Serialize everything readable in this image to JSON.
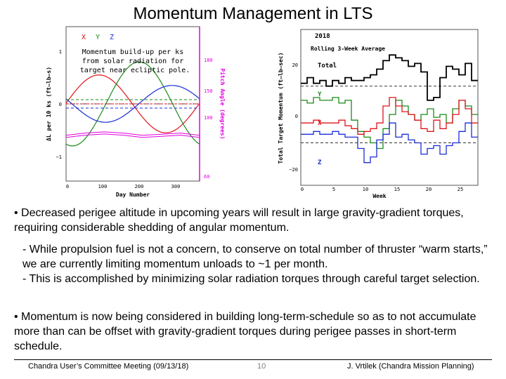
{
  "slide": {
    "title": "Momentum Management in LTS",
    "bullets": [
      "• Decreased perigee altitude in upcoming years will result in large gravity-gradient torques, requiring considerable shedding of angular momentum.",
      "- While propulsion fuel is not a concern, to conserve on total number of thruster “warm starts,” we are currently limiting momentum unloads to ~1 per month.",
      "- This is accomplished by minimizing solar radiation torques through careful target selection.",
      "• Momentum is now being considered in building long-term-schedule so as to not accumulate more than can be offset with gravity-gradient torques during perigee passes in short-term schedule."
    ],
    "footer": {
      "left": "Chandra User’s Committee Meeting (09/13/18)",
      "page": "10",
      "right": "J. Vrtilek (Chandra Mission Planning)"
    }
  },
  "colors": {
    "x": "#e0141c",
    "y": "#1a8a1a",
    "z": "#1a2cd8",
    "pitch": "#e000e0",
    "total": "#000000"
  },
  "chart_data": [
    {
      "type": "line",
      "title": "",
      "annotation": "Momentum build-up per ks from solar radiation for target near ecliptic pole.",
      "legend": [
        "X",
        "Y",
        "Z"
      ],
      "xlabel": "Day Number",
      "ylabel": "ΔL per 10 ks (ft–lb–s)",
      "y2label": "Pitch Angle (degrees)",
      "xlim": [
        0,
        365
      ],
      "ylim": [
        -1.5,
        1.5
      ],
      "y2lim": [
        50,
        185
      ],
      "xticks": [
        "0",
        "100",
        "200",
        "300"
      ],
      "yticks": [
        "1",
        "0",
        "−1"
      ],
      "y2ticks": [
        "180",
        "150",
        "100",
        "60"
      ],
      "series": [
        {
          "name": "X",
          "amp": 0.55,
          "phase_day": 90
        },
        {
          "name": "Y",
          "amp": 0.8,
          "phase_day": 200
        },
        {
          "name": "Z",
          "amp": 0.35,
          "phase_day": 290
        },
        {
          "name": "Pitch",
          "values_deg": [
            90,
            92,
            93,
            92,
            90,
            91,
            92,
            90
          ]
        }
      ]
    },
    {
      "type": "line",
      "title": "2018",
      "subtitle": "Rolling 3-Week Average",
      "xlabel": "Week",
      "ylabel": "Total Target Momentum (ft–lb–sec)",
      "xlim": [
        0,
        28
      ],
      "ylim": [
        -25,
        30
      ],
      "xticks": [
        "0",
        "5",
        "10",
        "15",
        "20",
        "25"
      ],
      "yticks": [
        "20",
        "0",
        "−20"
      ],
      "series_labels": [
        "Total",
        "Y",
        "X",
        "Z"
      ],
      "series": [
        {
          "name": "Total",
          "values": [
            11,
            13,
            11,
            12,
            10,
            12,
            11,
            13,
            12,
            12,
            13,
            14,
            16,
            19,
            21,
            20,
            19,
            17,
            18,
            15,
            5,
            6,
            13,
            17,
            16,
            14,
            18,
            12
          ]
        },
        {
          "name": "Y",
          "values": [
            5,
            4,
            6,
            5,
            5,
            6,
            4,
            5,
            -2,
            -6,
            -8,
            -10,
            -12,
            -5,
            0,
            5,
            3,
            0,
            -2,
            0,
            2,
            -1,
            0,
            -3,
            2,
            5,
            3,
            0
          ]
        },
        {
          "name": "X",
          "values": [
            -3,
            -3,
            -2,
            -3,
            -3,
            -3,
            -2,
            -4,
            -5,
            -7,
            -6,
            -5,
            -3,
            3,
            6,
            3,
            1,
            0,
            -2,
            -5,
            -6,
            -2,
            -5,
            -3,
            0,
            5,
            2,
            -3
          ]
        },
        {
          "name": "Z",
          "values": [
            -7,
            -7,
            -6,
            -7,
            -7,
            -6,
            -7,
            -8,
            -8,
            -12,
            -17,
            -15,
            -9,
            -7,
            -3,
            -8,
            -7,
            -9,
            -10,
            -14,
            -12,
            -11,
            -14,
            -11,
            -10,
            -6,
            -3,
            -8
          ]
        }
      ],
      "hlines": [
        10,
        -10
      ]
    }
  ]
}
